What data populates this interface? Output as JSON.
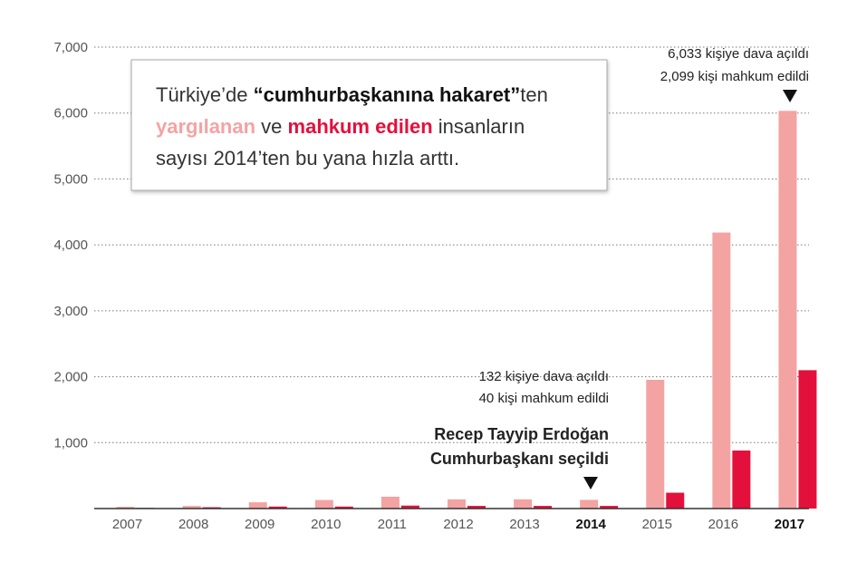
{
  "chart_data": {
    "type": "bar",
    "title_parts": [
      "Türkiye’de ",
      "“cumhurbaşkanına hakaret”",
      "ten",
      " ve ",
      " insanların",
      "sayısı 2014’ten bu yana hızla arttı."
    ],
    "categories": [
      "2007",
      "2008",
      "2009",
      "2010",
      "2011",
      "2012",
      "2013",
      "2014",
      "2015",
      "2016",
      "2017"
    ],
    "highlight_categories": [
      "2014",
      "2017"
    ],
    "series": [
      {
        "name": "yargılanan",
        "color": "#f4a3a3",
        "values": [
          26,
          40,
          95,
          130,
          180,
          140,
          140,
          132,
          1953,
          4187,
          6033
        ]
      },
      {
        "name": "mahkum edilen",
        "color": "#e3103c",
        "values": [
          10,
          20,
          30,
          30,
          45,
          40,
          40,
          40,
          240,
          880,
          2099
        ]
      }
    ],
    "ylim": [
      0,
      7000
    ],
    "yticks": [
      {
        "value": 1000,
        "label": "1,000"
      },
      {
        "value": 2000,
        "label": "2,000"
      },
      {
        "value": 3000,
        "label": "3,000"
      },
      {
        "value": 4000,
        "label": "4,000"
      },
      {
        "value": 5000,
        "label": "5,000"
      },
      {
        "value": 6000,
        "label": "6,000"
      },
      {
        "value": 7000,
        "label": "7,000"
      }
    ],
    "grid": true,
    "annotations": [
      [
        "6,033 kişiye dava açıldı",
        "2,099 kişi mahkum edildi"
      ],
      [
        "132 kişiye dava açıldı",
        "40 kişi mahkum edildi"
      ],
      [
        "Recep Tayyip Erdoğan",
        "Cumhurbaşkanı seçildi"
      ]
    ]
  }
}
